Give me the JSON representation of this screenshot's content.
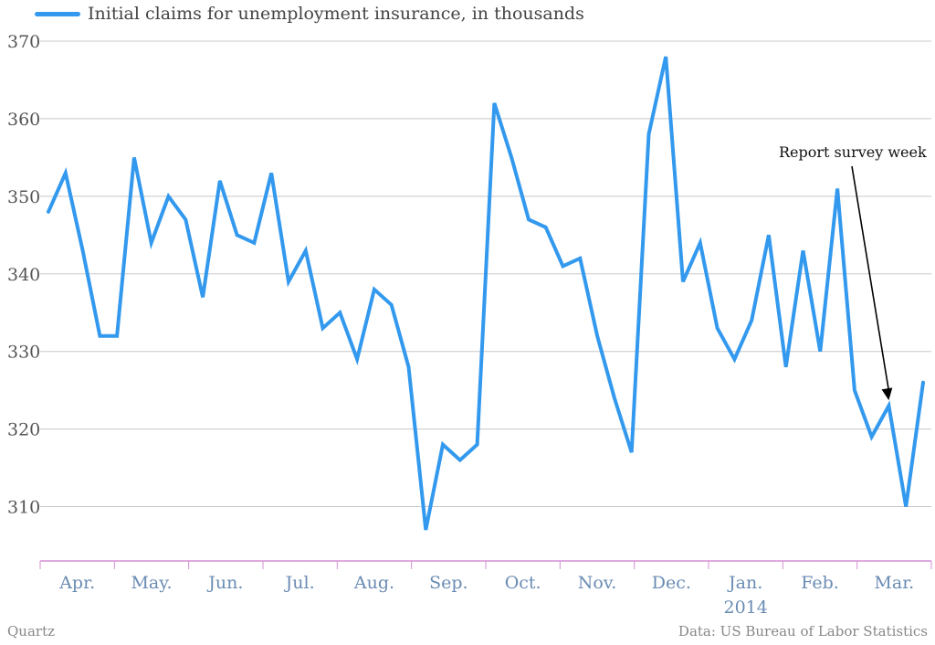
{
  "chart_data": {
    "type": "line",
    "title": "",
    "xlabel": "",
    "ylabel": "",
    "ylim": [
      303,
      370
    ],
    "yticks": [
      310,
      320,
      330,
      340,
      350,
      360,
      370
    ],
    "series": [
      {
        "name": "Initial claims for unemployment insurance, in thousands",
        "color": "#3399ee",
        "values": [
          348,
          353,
          343,
          332,
          332,
          355,
          344,
          350,
          347,
          337,
          352,
          345,
          344,
          353,
          339,
          343,
          333,
          335,
          329,
          338,
          336,
          328,
          307,
          318,
          316,
          318,
          362,
          355,
          347,
          346,
          341,
          342,
          332,
          324,
          317,
          358,
          368,
          339,
          344,
          333,
          329,
          334,
          345,
          328,
          343,
          330,
          351,
          325,
          319,
          323,
          310,
          326
        ]
      }
    ],
    "x_month_labels": [
      "Apr.",
      "May.",
      "Jun.",
      "Jul.",
      "Aug.",
      "Sep.",
      "Oct.",
      "Nov.",
      "Dec.",
      "Jan.",
      "Feb.",
      "Mar."
    ],
    "x_year_label": "2014",
    "annotation": {
      "text": "Report survey week",
      "point_index": 49
    }
  },
  "source_left": "Quartz",
  "source_right": "Data: US Bureau of Labor Statistics"
}
